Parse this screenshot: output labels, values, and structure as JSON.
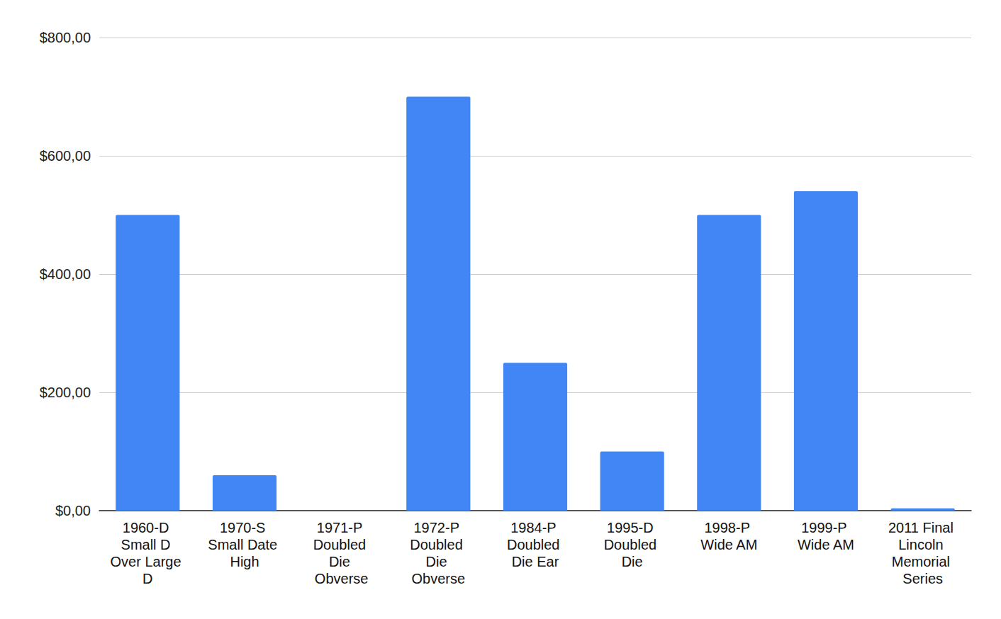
{
  "chart_data": {
    "type": "bar",
    "categories": [
      "1960-D Small D Over Large D",
      "1970-S Small Date High",
      "1971-P Doubled Die Obverse",
      "1972-P Doubled Die Obverse",
      "1984-P Doubled Die Ear",
      "1995-D Doubled Die",
      "1998-P Wide AM",
      "1999-P Wide AM",
      "2011 Final Lincoln Memorial Series"
    ],
    "values": [
      500,
      60,
      0,
      700,
      250,
      100,
      500,
      540,
      4
    ],
    "color": "#4285f4",
    "ylim": [
      0,
      800
    ],
    "yticks": [
      {
        "value": 0,
        "label": "$0,00"
      },
      {
        "value": 200,
        "label": "$200,00"
      },
      {
        "value": 400,
        "label": "$400,00"
      },
      {
        "value": 600,
        "label": "$600,00"
      },
      {
        "value": 800,
        "label": "$800,00"
      }
    ],
    "grid": true
  }
}
